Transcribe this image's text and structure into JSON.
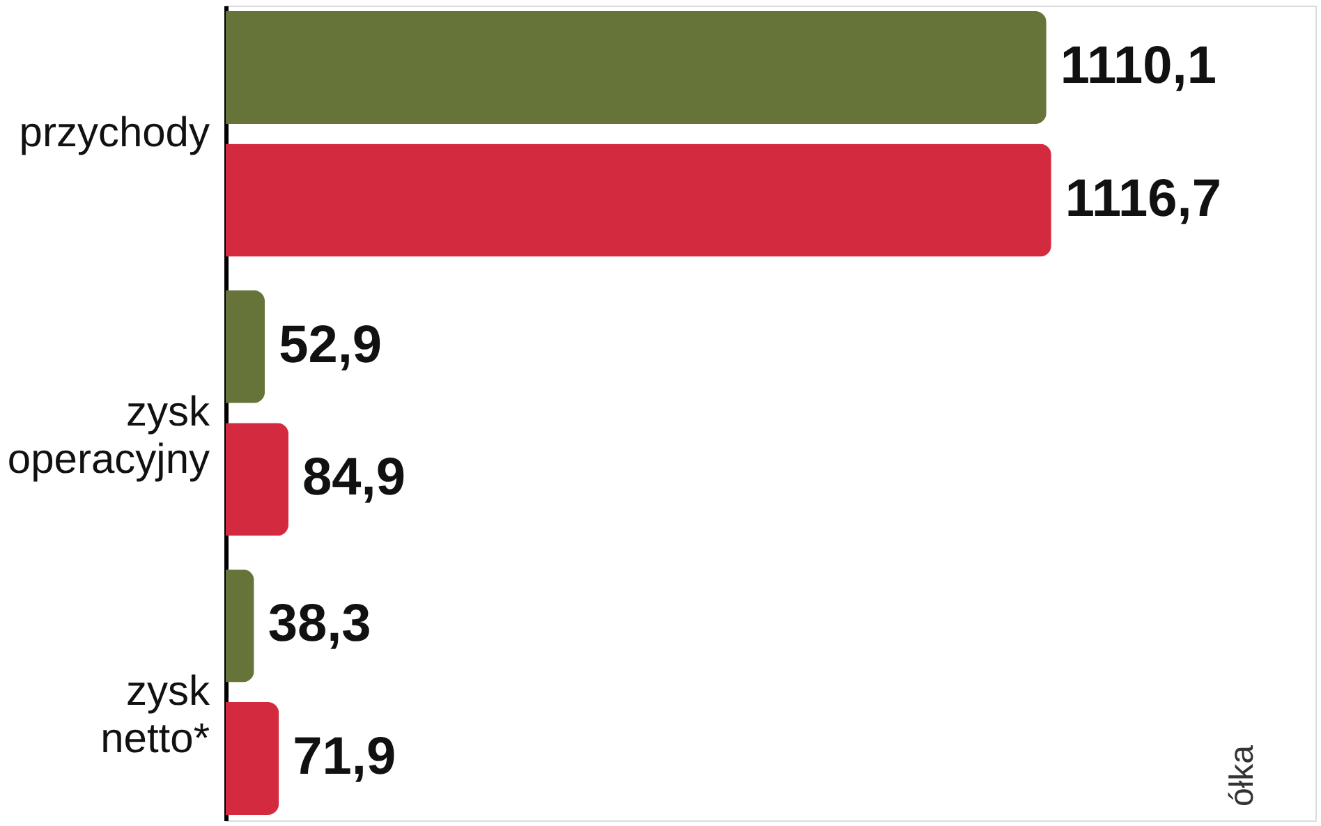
{
  "chart_data": {
    "type": "bar",
    "orientation": "horizontal",
    "categories": [
      "przychody",
      "zysk operacyjny",
      "zysk netto*"
    ],
    "series": [
      {
        "color": "#66743a",
        "values": [
          1110.1,
          52.9,
          38.3
        ],
        "value_labels": [
          "1110,1",
          "52,9",
          "38,3"
        ]
      },
      {
        "color": "#d42a40",
        "values": [
          1116.7,
          84.9,
          71.9
        ],
        "value_labels": [
          "1116,7",
          "84,9",
          "71,9"
        ]
      }
    ],
    "tick_labels": "y",
    "legend": false,
    "annotations": [
      "ółka"
    ]
  }
}
